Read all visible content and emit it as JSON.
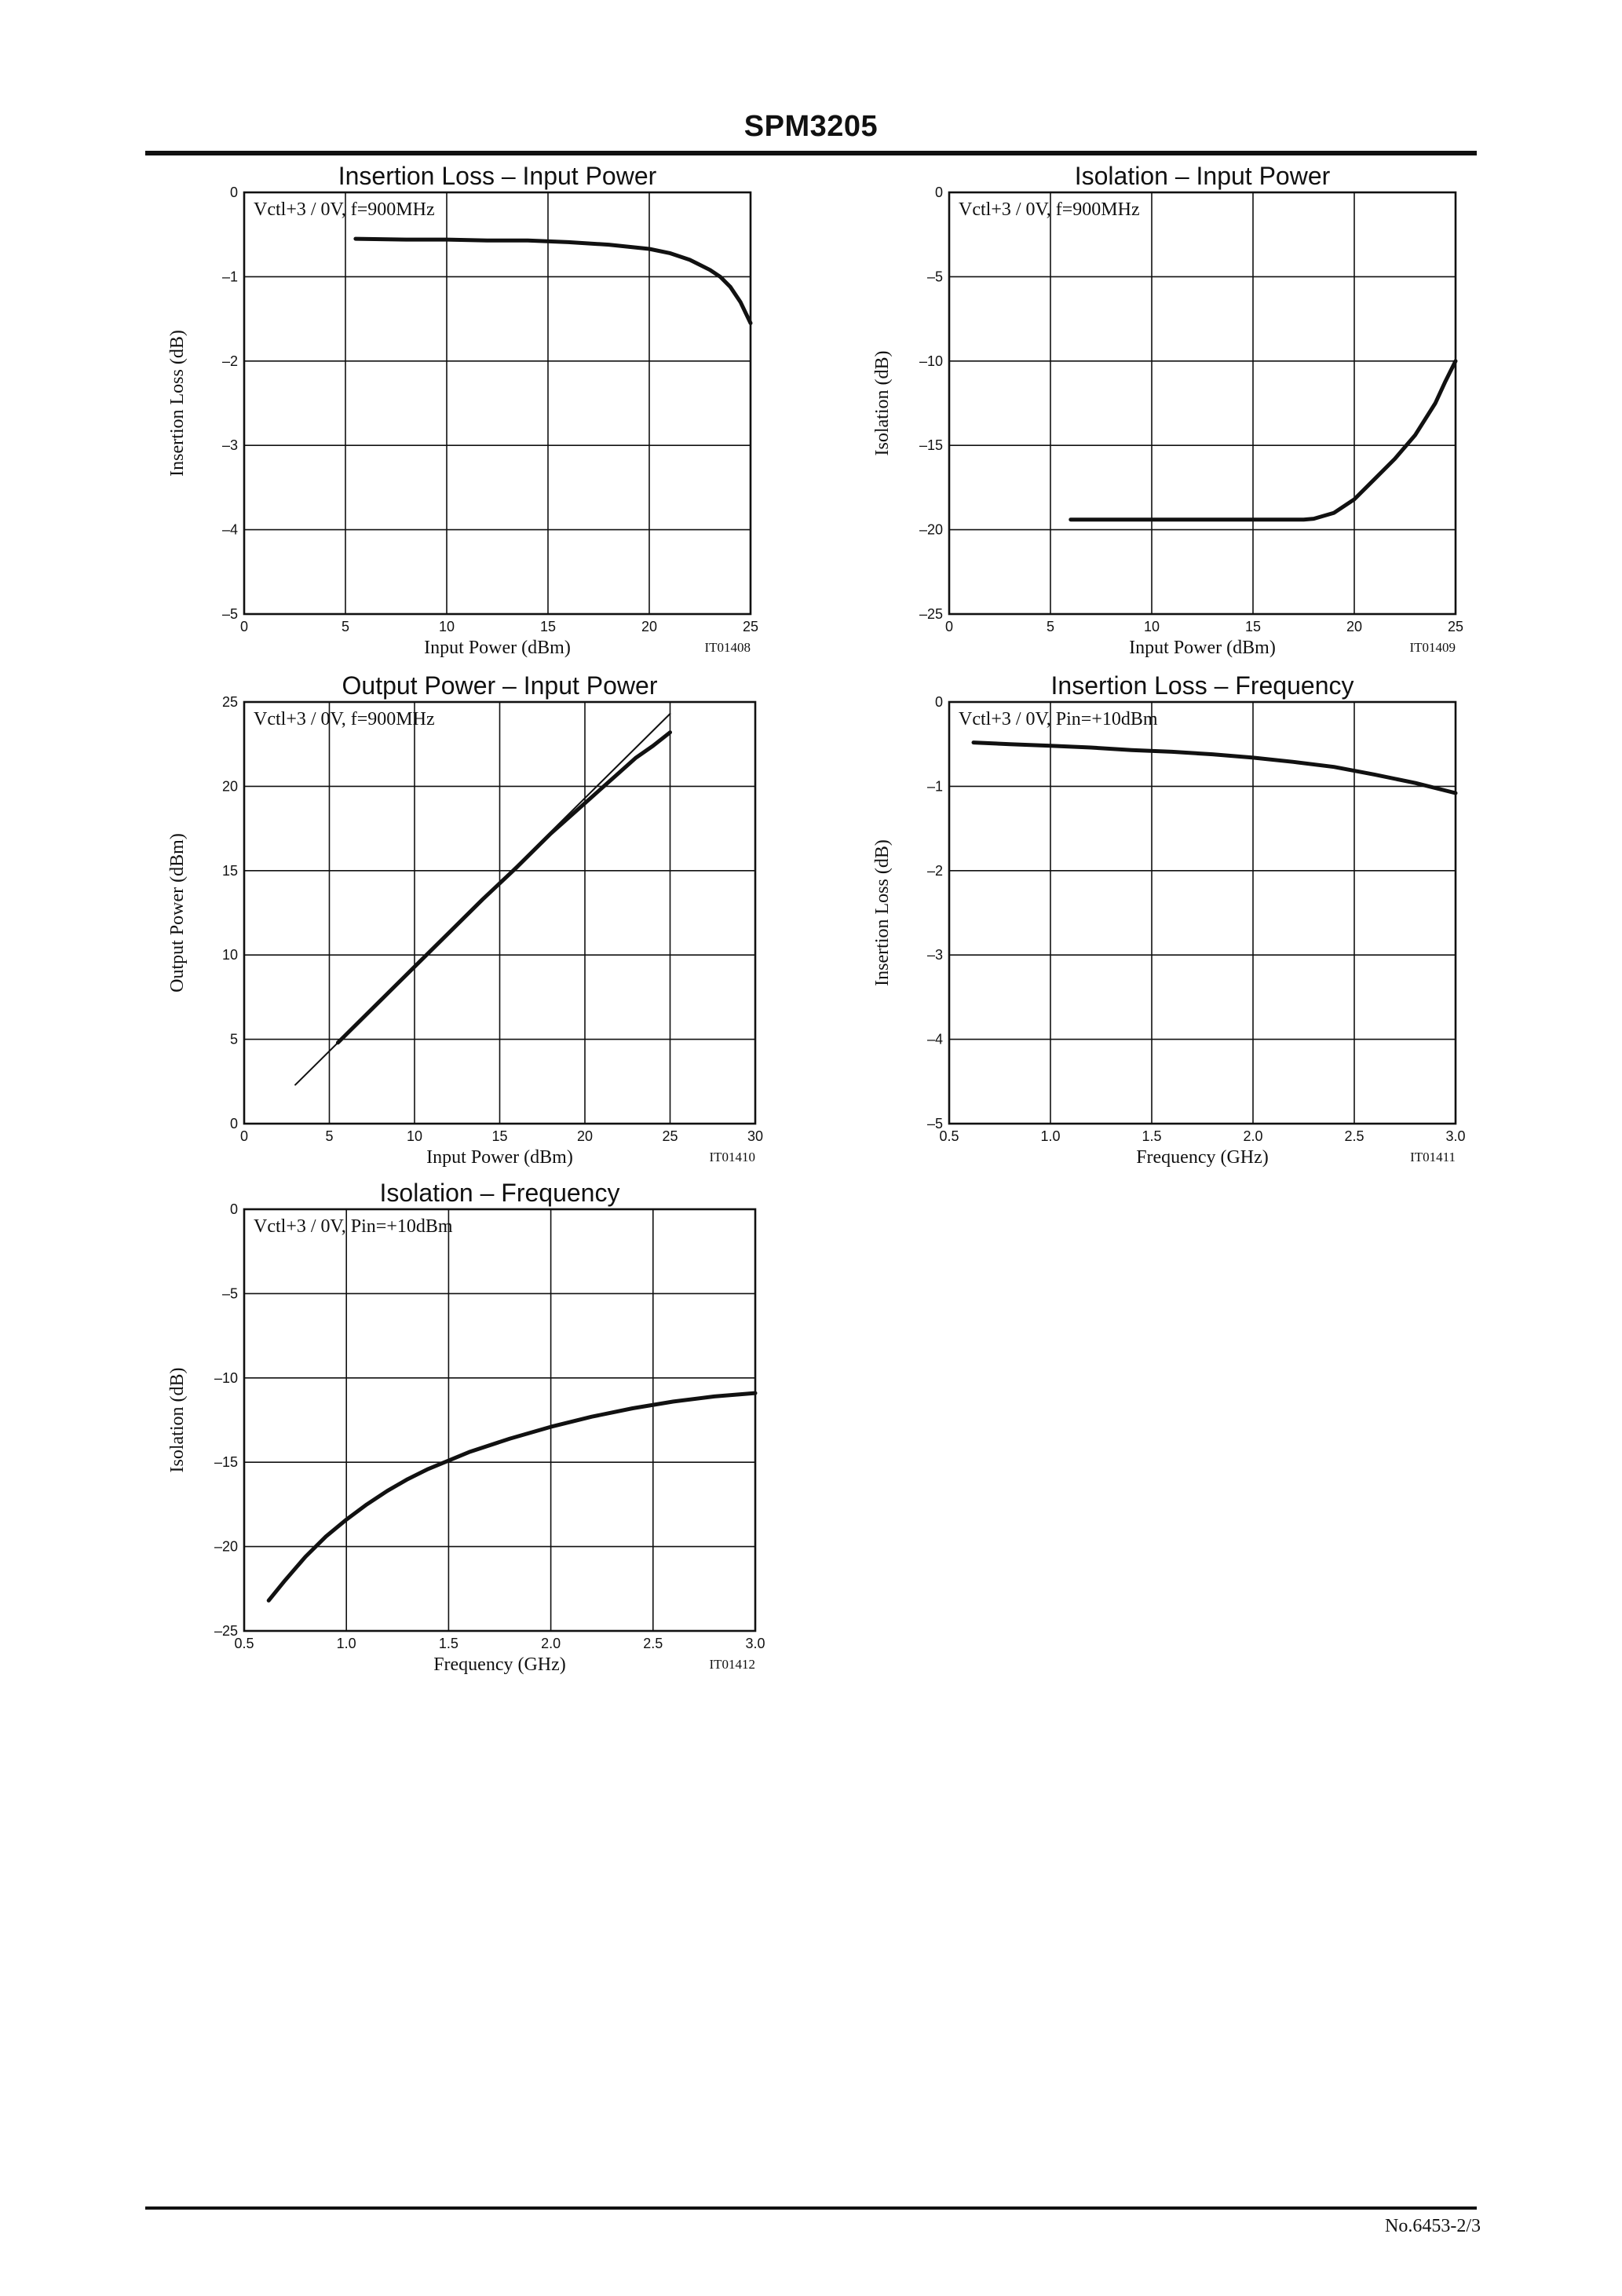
{
  "document": {
    "title": "SPM3205",
    "page_number": "No.6453-2/3"
  },
  "chart_data": [
    {
      "id": "il_pin",
      "type": "line",
      "title": "Insertion Loss  –  Input Power",
      "xlabel": "Input Power (dBm)",
      "ylabel": "Insertion Loss (dB)",
      "condition": "Vctl+3 / 0V, f=900MHz",
      "figure_code": "IT01408",
      "xlim": [
        0,
        25
      ],
      "ylim": [
        -5,
        0
      ],
      "x_ticks": [
        0,
        5,
        10,
        15,
        20,
        25
      ],
      "x_tick_labels": [
        "0",
        "5",
        "10",
        "15",
        "20",
        "25"
      ],
      "y_ticks": [
        0,
        -1,
        -2,
        -3,
        -4,
        -5
      ],
      "y_tick_labels": [
        "0",
        "–1",
        "–2",
        "–3",
        "–4",
        "–5"
      ],
      "grid": true,
      "series": [
        {
          "style": "thick",
          "x": [
            5.5,
            8,
            10,
            12,
            14,
            16,
            18,
            20,
            21,
            22,
            23,
            23.5,
            24,
            24.5,
            25
          ],
          "y": [
            -0.55,
            -0.56,
            -0.56,
            -0.57,
            -0.57,
            -0.59,
            -0.62,
            -0.67,
            -0.72,
            -0.8,
            -0.92,
            -1.0,
            -1.12,
            -1.3,
            -1.55
          ]
        }
      ]
    },
    {
      "id": "iso_pin",
      "type": "line",
      "title": "Isolation  –  Input Power",
      "xlabel": "Input Power (dBm)",
      "ylabel": "Isolation (dB)",
      "condition": "Vctl+3 / 0V, f=900MHz",
      "figure_code": "IT01409",
      "xlim": [
        0,
        25
      ],
      "ylim": [
        -25,
        0
      ],
      "x_ticks": [
        0,
        5,
        10,
        15,
        20,
        25
      ],
      "x_tick_labels": [
        "0",
        "5",
        "10",
        "15",
        "20",
        "25"
      ],
      "y_ticks": [
        0,
        -5,
        -10,
        -15,
        -20,
        -25
      ],
      "y_tick_labels": [
        "0",
        "–5",
        "–10",
        "–15",
        "–20",
        "–25"
      ],
      "grid": true,
      "series": [
        {
          "style": "thick",
          "x": [
            6,
            8,
            10,
            12,
            14,
            16,
            17,
            17.5,
            18,
            19,
            20,
            21,
            22,
            23,
            24,
            24.5,
            25
          ],
          "y": [
            -19.4,
            -19.4,
            -19.4,
            -19.4,
            -19.4,
            -19.4,
            -19.4,
            -19.4,
            -19.35,
            -19.0,
            -18.2,
            -17.0,
            -15.8,
            -14.4,
            -12.5,
            -11.2,
            -10.0
          ]
        }
      ]
    },
    {
      "id": "pout_pin",
      "type": "line",
      "title": "Output Power  –  Input Power",
      "xlabel": "Input Power (dBm)",
      "ylabel": "Output Power (dBm)",
      "condition": "Vctl+3 / 0V, f=900MHz",
      "figure_code": "IT01410",
      "xlim": [
        0,
        30
      ],
      "ylim": [
        0,
        25
      ],
      "x_ticks": [
        0,
        5,
        10,
        15,
        20,
        25,
        30
      ],
      "x_tick_labels": [
        "0",
        "5",
        "10",
        "15",
        "20",
        "25",
        "30"
      ],
      "y_ticks": [
        0,
        5,
        10,
        15,
        20,
        25
      ],
      "y_tick_labels": [
        "0",
        "5",
        "10",
        "15",
        "20",
        "25"
      ],
      "grid": true,
      "series": [
        {
          "style": "thin",
          "x": [
            3,
            25
          ],
          "y": [
            2.3,
            24.3
          ]
        },
        {
          "style": "thick",
          "x": [
            5.5,
            8,
            10,
            12,
            14,
            16,
            18,
            20,
            21,
            22,
            23,
            24,
            25
          ],
          "y": [
            4.8,
            7.3,
            9.3,
            11.3,
            13.3,
            15.2,
            17.2,
            19.0,
            19.9,
            20.8,
            21.7,
            22.4,
            23.2
          ]
        }
      ]
    },
    {
      "id": "il_freq",
      "type": "line",
      "title": "Insertion Loss – Frequency",
      "xlabel": "Frequency (GHz)",
      "ylabel": "Insertion Loss (dB)",
      "condition": "Vctl+3 / 0V, Pin=+10dBm",
      "figure_code": "IT01411",
      "xlim": [
        0.5,
        3.0
      ],
      "ylim": [
        -5,
        0
      ],
      "x_ticks": [
        0.5,
        1.0,
        1.5,
        2.0,
        2.5,
        3.0
      ],
      "x_tick_labels": [
        "0.5",
        "1.0",
        "1.5",
        "2.0",
        "2.5",
        "3.0"
      ],
      "y_ticks": [
        0,
        -1,
        -2,
        -3,
        -4,
        -5
      ],
      "y_tick_labels": [
        "0",
        "–1",
        "–2",
        "–3",
        "–4",
        "–5"
      ],
      "grid": true,
      "series": [
        {
          "style": "thick",
          "x": [
            0.62,
            0.8,
            1.0,
            1.2,
            1.4,
            1.6,
            1.8,
            2.0,
            2.2,
            2.4,
            2.6,
            2.8,
            3.0
          ],
          "y": [
            -0.48,
            -0.5,
            -0.52,
            -0.54,
            -0.57,
            -0.59,
            -0.62,
            -0.66,
            -0.71,
            -0.77,
            -0.86,
            -0.96,
            -1.08
          ]
        }
      ]
    },
    {
      "id": "iso_freq",
      "type": "line",
      "title": "Isolation – Frequency",
      "xlabel": "Frequency (GHz)",
      "ylabel": "Isolation (dB)",
      "condition": "Vctl+3 / 0V, Pin=+10dBm",
      "figure_code": "IT01412",
      "xlim": [
        0.5,
        3.0
      ],
      "ylim": [
        -25,
        0
      ],
      "x_ticks": [
        0.5,
        1.0,
        1.5,
        2.0,
        2.5,
        3.0
      ],
      "x_tick_labels": [
        "0.5",
        "1.0",
        "1.5",
        "2.0",
        "2.5",
        "3.0"
      ],
      "y_ticks": [
        0,
        -5,
        -10,
        -15,
        -20,
        -25
      ],
      "y_tick_labels": [
        "0",
        "–5",
        "–10",
        "–15",
        "–20",
        "–25"
      ],
      "grid": true,
      "series": [
        {
          "style": "thick",
          "x": [
            0.62,
            0.7,
            0.8,
            0.9,
            1.0,
            1.1,
            1.2,
            1.3,
            1.4,
            1.5,
            1.6,
            1.8,
            2.0,
            2.2,
            2.4,
            2.6,
            2.8,
            3.0
          ],
          "y": [
            -23.2,
            -22.0,
            -20.6,
            -19.4,
            -18.4,
            -17.5,
            -16.7,
            -16.0,
            -15.4,
            -14.9,
            -14.4,
            -13.6,
            -12.9,
            -12.3,
            -11.8,
            -11.4,
            -11.1,
            -10.9
          ]
        }
      ]
    }
  ]
}
